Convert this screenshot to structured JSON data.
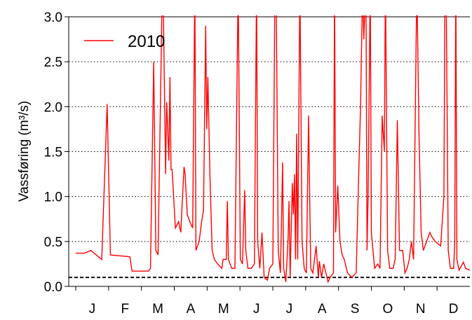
{
  "chart_data": {
    "type": "line",
    "ylabel": "Vassføring (m³/s)",
    "categories": [
      "J",
      "F",
      "M",
      "A",
      "M",
      "J",
      "J",
      "A",
      "S",
      "O",
      "N",
      "D"
    ],
    "xlim": [
      1,
      365
    ],
    "ylim": [
      0,
      3
    ],
    "yticks": [
      {
        "value": 0,
        "label": "0.0"
      },
      0.5,
      {
        "value": 1,
        "label": "1.0"
      },
      1.5,
      {
        "value": 2,
        "label": "2.0"
      },
      2.5,
      {
        "value": 3,
        "label": "3.0"
      }
    ],
    "grid": true,
    "reference_line": 0.1,
    "legend": "upper left",
    "series": [
      {
        "name": "2010",
        "color": "#ff0000",
        "x": [
          1,
          9,
          15,
          25,
          30,
          33,
          51,
          53,
          68,
          70,
          73,
          75,
          77,
          81,
          82,
          84,
          85,
          87,
          88,
          89,
          90,
          93,
          96,
          98,
          101,
          102,
          104,
          107,
          109,
          111,
          112,
          115,
          117,
          119,
          121,
          122,
          123,
          125,
          127,
          129,
          132,
          136,
          137,
          140,
          141,
          142,
          145,
          148,
          151,
          153,
          155,
          157,
          158,
          160,
          163,
          166,
          168,
          169,
          171,
          173,
          175,
          178,
          180,
          183,
          185,
          186,
          188,
          190,
          191,
          192,
          193,
          195,
          197,
          198,
          199,
          201,
          202,
          203,
          204,
          205,
          206,
          208,
          210,
          212,
          214,
          216,
          218,
          220,
          223,
          225,
          226,
          228,
          230,
          232,
          234,
          236,
          239,
          240,
          241,
          243,
          245,
          247,
          249,
          252,
          256,
          260,
          262,
          264,
          266,
          267,
          269,
          270,
          271,
          273,
          274,
          277,
          280,
          282,
          284,
          286,
          287,
          289,
          291,
          294,
          296,
          298,
          300,
          303,
          305,
          307,
          309,
          311,
          313,
          316,
          318,
          320,
          322,
          325,
          328,
          330,
          333,
          338,
          341,
          342,
          343,
          345,
          347,
          350,
          351,
          352,
          353,
          355,
          359,
          361,
          365
        ],
        "values": [
          0.37,
          0.37,
          0.4,
          0.3,
          2.03,
          0.35,
          0.33,
          0.17,
          0.17,
          0.2,
          2.5,
          0.4,
          0.35,
          3.4,
          3.0,
          1.25,
          2.05,
          1.4,
          2.33,
          1.3,
          1.3,
          0.65,
          0.72,
          0.6,
          1.33,
          1.25,
          0.8,
          0.7,
          0.65,
          3.4,
          0.4,
          0.5,
          0.7,
          0.85,
          2.9,
          1.75,
          2.33,
          1.2,
          0.4,
          0.3,
          0.25,
          0.2,
          0.3,
          0.3,
          0.95,
          0.3,
          0.2,
          0.2,
          3.4,
          0.3,
          0.25,
          1.07,
          0.4,
          0.2,
          0.2,
          0.25,
          3.4,
          0.5,
          0.2,
          0.6,
          0.1,
          0.07,
          0.2,
          0.25,
          3.4,
          3.4,
          0.4,
          0.15,
          0.7,
          1.38,
          0.2,
          0.05,
          0.5,
          0.95,
          0.1,
          1.15,
          0.8,
          1.25,
          0.3,
          1.7,
          0.3,
          3.4,
          0.5,
          0.2,
          0.15,
          1.9,
          0.2,
          0.15,
          0.45,
          0.1,
          0.28,
          0.1,
          0.25,
          0.15,
          0.05,
          0.1,
          0.15,
          3.4,
          0.6,
          1.12,
          0.5,
          0.35,
          0.3,
          0.15,
          0.1,
          0.15,
          1.1,
          2.0,
          3.4,
          2.75,
          3.4,
          0.4,
          1.0,
          3.4,
          0.6,
          0.2,
          0.25,
          0.2,
          1.9,
          1.5,
          3.4,
          0.4,
          0.2,
          0.2,
          0.3,
          1.85,
          0.4,
          0.4,
          0.15,
          0.2,
          0.3,
          0.5,
          0.3,
          3.4,
          1.7,
          0.6,
          0.4,
          0.5,
          0.6,
          0.55,
          0.5,
          0.45,
          1.0,
          3.4,
          3.4,
          0.4,
          0.2,
          0.2,
          0.5,
          3.4,
          0.3,
          0.18,
          0.27,
          0.2,
          0.18
        ]
      }
    ]
  }
}
